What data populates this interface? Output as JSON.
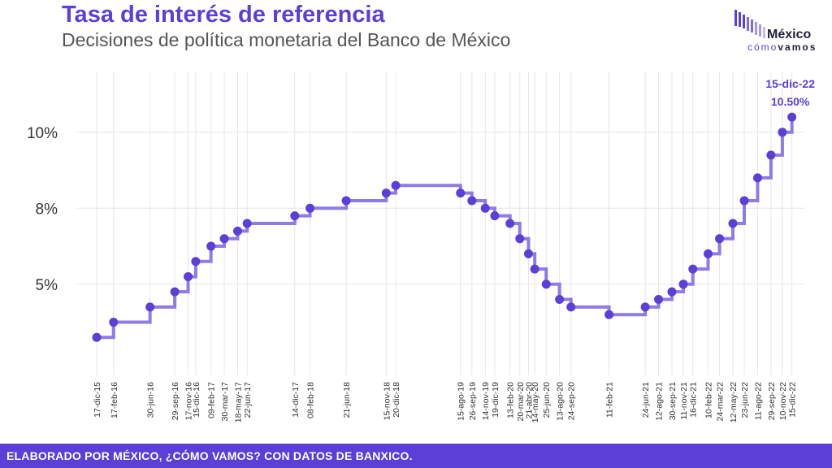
{
  "header": {
    "title": "Tasa de interés de referencia",
    "subtitle": "Decisiones de política monetaria del Banco de México"
  },
  "logo": {
    "main": "México",
    "sub_a": "cómo",
    "sub_b": "vamos"
  },
  "footer": {
    "text": "ELABORADO POR MÉXICO, ¿CÓMO VAMOS? CON DATOS DE BANXICO."
  },
  "colors": {
    "accent": "#5b3fd6",
    "line": "#8f7ae6",
    "grid": "#e6e6e6",
    "text": "#333333"
  },
  "chart_data": {
    "type": "line",
    "step": true,
    "title": "",
    "xlabel": "",
    "ylabel": "",
    "ylim": [
      2.0,
      12.0
    ],
    "yticks": [
      5,
      7.5,
      10
    ],
    "ytick_labels": [
      "5%",
      "8%",
      "10%"
    ],
    "grid": true,
    "x_axis": "date",
    "x_end": "2022-12-31",
    "series": [
      {
        "points": [
          {
            "date": "2015-12-17",
            "label": "17-dic-15",
            "value": 3.25
          },
          {
            "date": "2016-02-17",
            "label": "17-feb-16",
            "value": 3.75
          },
          {
            "date": "2016-06-30",
            "label": "30-jun-16",
            "value": 4.25
          },
          {
            "date": "2016-09-29",
            "label": "29-sep-16",
            "value": 4.75
          },
          {
            "date": "2016-11-17",
            "label": "17-nov-16",
            "value": 5.25
          },
          {
            "date": "2016-12-15",
            "label": "15-dic-16",
            "value": 5.75
          },
          {
            "date": "2017-02-09",
            "label": "09-feb-17",
            "value": 6.25
          },
          {
            "date": "2017-03-30",
            "label": "30-mar-17",
            "value": 6.5
          },
          {
            "date": "2017-05-18",
            "label": "18-may-17",
            "value": 6.75
          },
          {
            "date": "2017-06-22",
            "label": "22-jun-17",
            "value": 7.0
          },
          {
            "date": "2017-12-14",
            "label": "14-dic-17",
            "value": 7.25
          },
          {
            "date": "2018-02-08",
            "label": "08-feb-18",
            "value": 7.5
          },
          {
            "date": "2018-06-21",
            "label": "21-jun-18",
            "value": 7.75
          },
          {
            "date": "2018-11-15",
            "label": "15-nov-18",
            "value": 8.0
          },
          {
            "date": "2018-12-20",
            "label": "20-dic-18",
            "value": 8.25
          },
          {
            "date": "2019-08-15",
            "label": "15-ago-19",
            "value": 8.0
          },
          {
            "date": "2019-09-26",
            "label": "26-sep-19",
            "value": 7.75
          },
          {
            "date": "2019-11-14",
            "label": "14-nov-19",
            "value": 7.5
          },
          {
            "date": "2019-12-19",
            "label": "19-dic-19",
            "value": 7.25
          },
          {
            "date": "2020-02-13",
            "label": "13-feb-20",
            "value": 7.0
          },
          {
            "date": "2020-03-20",
            "label": "20-mar-20",
            "value": 6.5
          },
          {
            "date": "2020-04-21",
            "label": "21-abr-20",
            "value": 6.0
          },
          {
            "date": "2020-05-14",
            "label": "14-may-20",
            "value": 5.5
          },
          {
            "date": "2020-06-25",
            "label": "25-jun-20",
            "value": 5.0
          },
          {
            "date": "2020-08-13",
            "label": "13-ago-20",
            "value": 4.5
          },
          {
            "date": "2020-09-24",
            "label": "24-sep-20",
            "value": 4.25
          },
          {
            "date": "2021-02-11",
            "label": "11-feb-21",
            "value": 4.0
          },
          {
            "date": "2021-06-24",
            "label": "24-jun-21",
            "value": 4.25
          },
          {
            "date": "2021-08-12",
            "label": "12-ago-21",
            "value": 4.5
          },
          {
            "date": "2021-09-30",
            "label": "30-sep-21",
            "value": 4.75
          },
          {
            "date": "2021-11-11",
            "label": "11-nov-21",
            "value": 5.0
          },
          {
            "date": "2021-12-16",
            "label": "16-dic-21",
            "value": 5.5
          },
          {
            "date": "2022-02-10",
            "label": "10-feb-22",
            "value": 6.0
          },
          {
            "date": "2022-03-24",
            "label": "24-mar-22",
            "value": 6.5
          },
          {
            "date": "2022-05-12",
            "label": "12-may-22",
            "value": 7.0
          },
          {
            "date": "2022-06-23",
            "label": "23-jun-22",
            "value": 7.75
          },
          {
            "date": "2022-08-11",
            "label": "11-ago-22",
            "value": 8.5
          },
          {
            "date": "2022-09-29",
            "label": "29-sep-22",
            "value": 9.25
          },
          {
            "date": "2022-11-10",
            "label": "10-nov-22",
            "value": 10.0
          },
          {
            "date": "2022-12-15",
            "label": "15-dic-22",
            "value": 10.5
          }
        ]
      }
    ],
    "annotation": {
      "date": "15-dic-22",
      "value": "10.50%"
    }
  }
}
